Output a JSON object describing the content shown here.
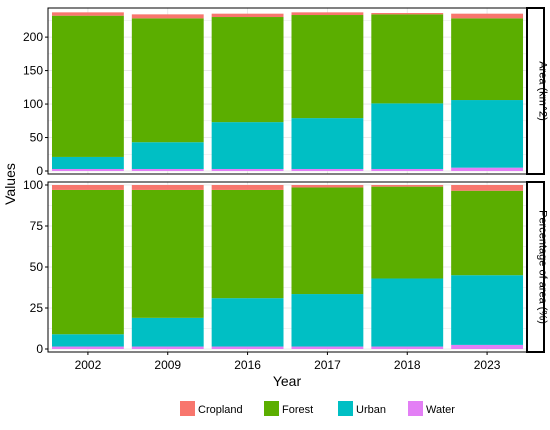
{
  "chart_data": {
    "type": "bar",
    "stacked": true,
    "xlabel": "Year",
    "ylabel": "Values",
    "categories": [
      "2002",
      "2009",
      "2016",
      "2017",
      "2018",
      "2023"
    ],
    "colors": {
      "Cropland": "#F8766D",
      "Forest": "#5BAE00",
      "Urban": "#00BFC4",
      "Water": "#E37FF5"
    },
    "stack_order": [
      "Water",
      "Urban",
      "Forest",
      "Cropland"
    ],
    "legend": {
      "position": "bottom",
      "entries": [
        "Cropland",
        "Forest",
        "Urban",
        "Water"
      ]
    },
    "panels": [
      {
        "strip": "Area (km^2)",
        "ylim": [
          0,
          239
        ],
        "yticks": [
          0,
          50,
          100,
          150,
          200
        ],
        "series": [
          {
            "name": "Water",
            "values": [
              3,
              3,
              3,
              3,
              3,
              5
            ]
          },
          {
            "name": "Urban",
            "values": [
              18,
              40,
              70,
              76,
              98,
              101
            ]
          },
          {
            "name": "Forest",
            "values": [
              211,
              185,
              157,
              154,
              133,
              122
            ]
          },
          {
            "name": "Cropland",
            "values": [
              5,
              6,
              5,
              4,
              2,
              7
            ]
          }
        ]
      },
      {
        "strip": "Percentage of area (%)",
        "ylim": [
          0,
          100
        ],
        "yticks": [
          0,
          25,
          50,
          75,
          100
        ],
        "series": [
          {
            "name": "Water",
            "values": [
              1.5,
              1.5,
              1.5,
              1.5,
              1.5,
              2.5
            ]
          },
          {
            "name": "Urban",
            "values": [
              7.5,
              17.5,
              29.5,
              32,
              41.5,
              42.5
            ]
          },
          {
            "name": "Forest",
            "values": [
              88,
              78,
              66,
              65,
              56,
              51.5
            ]
          },
          {
            "name": "Cropland",
            "values": [
              3,
              3,
              3,
              1.5,
              1,
              3.5
            ]
          }
        ]
      }
    ]
  }
}
